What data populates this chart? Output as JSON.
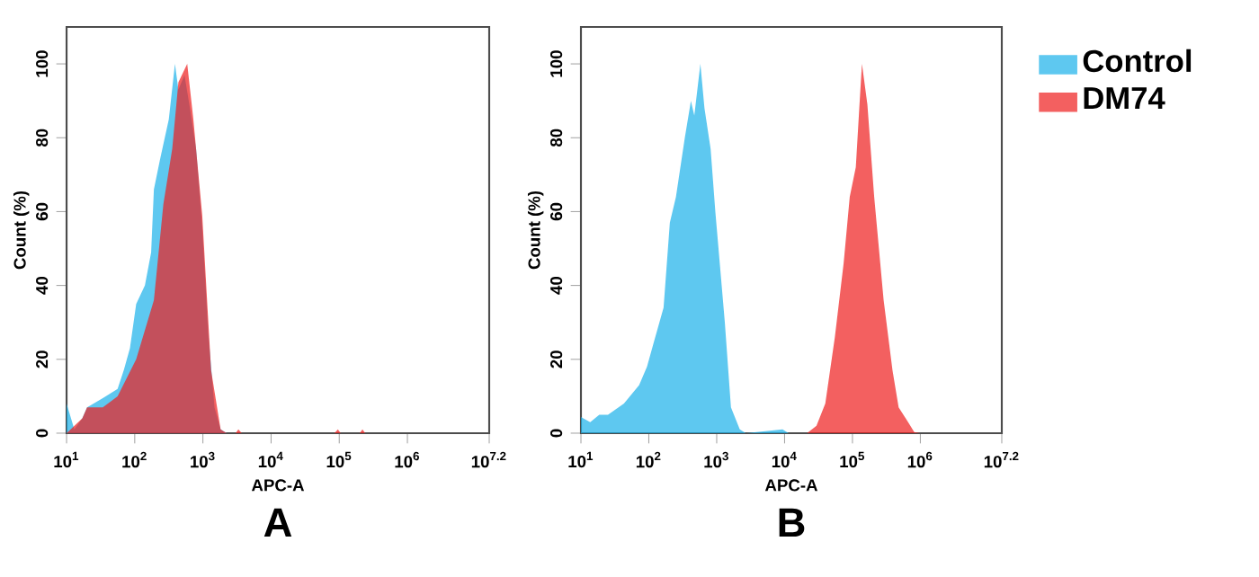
{
  "chart_data": [
    {
      "type": "area",
      "xlabel": "APC-A",
      "ylabel": "Count  (%)",
      "annotations": [
        "A"
      ],
      "log": "x",
      "xlim": [
        10,
        15848932
      ],
      "ylim": [
        0,
        110
      ],
      "xticks": [
        {
          "value": 10,
          "label": "10$^{1}$"
        },
        {
          "value": 100,
          "label": "10$^{2}$"
        },
        {
          "value": 1000,
          "label": "10$^{3}$"
        },
        {
          "value": 10000,
          "label": "10$^{4}$"
        },
        {
          "value": 100000,
          "label": "10$^{5}$"
        },
        {
          "value": 1000000,
          "label": "10$^{6}$"
        },
        {
          "value": 15848932,
          "label": "10$^{7.2}$"
        }
      ],
      "yticks": [
        0,
        20,
        40,
        60,
        80,
        100
      ],
      "series": [
        {
          "color": "#1ab0ea",
          "x": [
            10,
            13,
            17,
            20,
            34,
            56,
            69,
            85,
            105,
            141,
            174,
            191,
            234,
            316,
            389,
            437,
            537,
            646,
            794,
            977,
            1200,
            1479,
            1820,
            2239
          ],
          "values": [
            8,
            1,
            4,
            7,
            9.5,
            12,
            17,
            23,
            35,
            40,
            49,
            66,
            74,
            85,
            100,
            93,
            97,
            88,
            77,
            56,
            27,
            7,
            1,
            0
          ]
        },
        {
          "color": "#ee1c1c",
          "x": [
            10,
            17,
            20,
            34,
            56,
            105,
            191,
            263,
            355,
            437,
            589,
            724,
            977,
            1318,
            1820,
            2239,
            3020,
            3311,
            3715,
            85000,
            95500,
            105000,
            200000,
            219000,
            240000,
            15848932
          ],
          "values": [
            0,
            4,
            7,
            7,
            10,
            20,
            36,
            62,
            77,
            95,
            100,
            85,
            59,
            17,
            1,
            0,
            0,
            1,
            0,
            0,
            1,
            0,
            0,
            1,
            0,
            0
          ]
        }
      ]
    },
    {
      "type": "area",
      "xlabel": "APC-A",
      "ylabel": "Count  (%)",
      "annotations": [
        "B"
      ],
      "log": "x",
      "xlim": [
        10,
        15848932
      ],
      "ylim": [
        0,
        110
      ],
      "legend": "right",
      "xticks": [
        {
          "value": 10,
          "label": "10$^{1}$"
        },
        {
          "value": 100,
          "label": "10$^{2}$"
        },
        {
          "value": 1000,
          "label": "10$^{3}$"
        },
        {
          "value": 10000,
          "label": "10$^{4}$"
        },
        {
          "value": 100000,
          "label": "10$^{5}$"
        },
        {
          "value": 1000000,
          "label": "10$^{6}$"
        },
        {
          "value": 15848932,
          "label": "10$^{7.2}$"
        }
      ],
      "yticks": [
        0,
        20,
        40,
        60,
        80,
        100
      ],
      "series": [
        {
          "name": "Control",
          "color": "#1ab0ea",
          "x": [
            10,
            13.7,
            18.6,
            25,
            43,
            72,
            94,
            120,
            165,
            204,
            251,
            339,
            417,
            468,
            575,
            661,
            813,
            955,
            1318,
            1622,
            2188,
            2692,
            9333,
            11500
          ],
          "values": [
            4.4,
            3,
            5,
            5,
            8,
            13,
            18,
            25,
            34,
            57,
            64,
            80,
            90,
            86,
            100,
            88,
            77,
            60,
            30,
            7,
            1,
            0,
            1,
            0
          ]
        },
        {
          "name": "DM74",
          "color": "#ee1c1c",
          "x": [
            21400,
            29500,
            39800,
            55000,
            74100,
            91200,
            112000,
            126000,
            138000,
            166000,
            209000,
            288000,
            389000,
            479000,
            661000,
            813000,
            1000000
          ],
          "values": [
            0,
            2,
            8,
            26,
            46,
            64,
            72,
            88,
            100,
            89,
            64,
            36,
            17,
            7,
            3,
            0.3,
            0
          ]
        }
      ]
    }
  ]
}
